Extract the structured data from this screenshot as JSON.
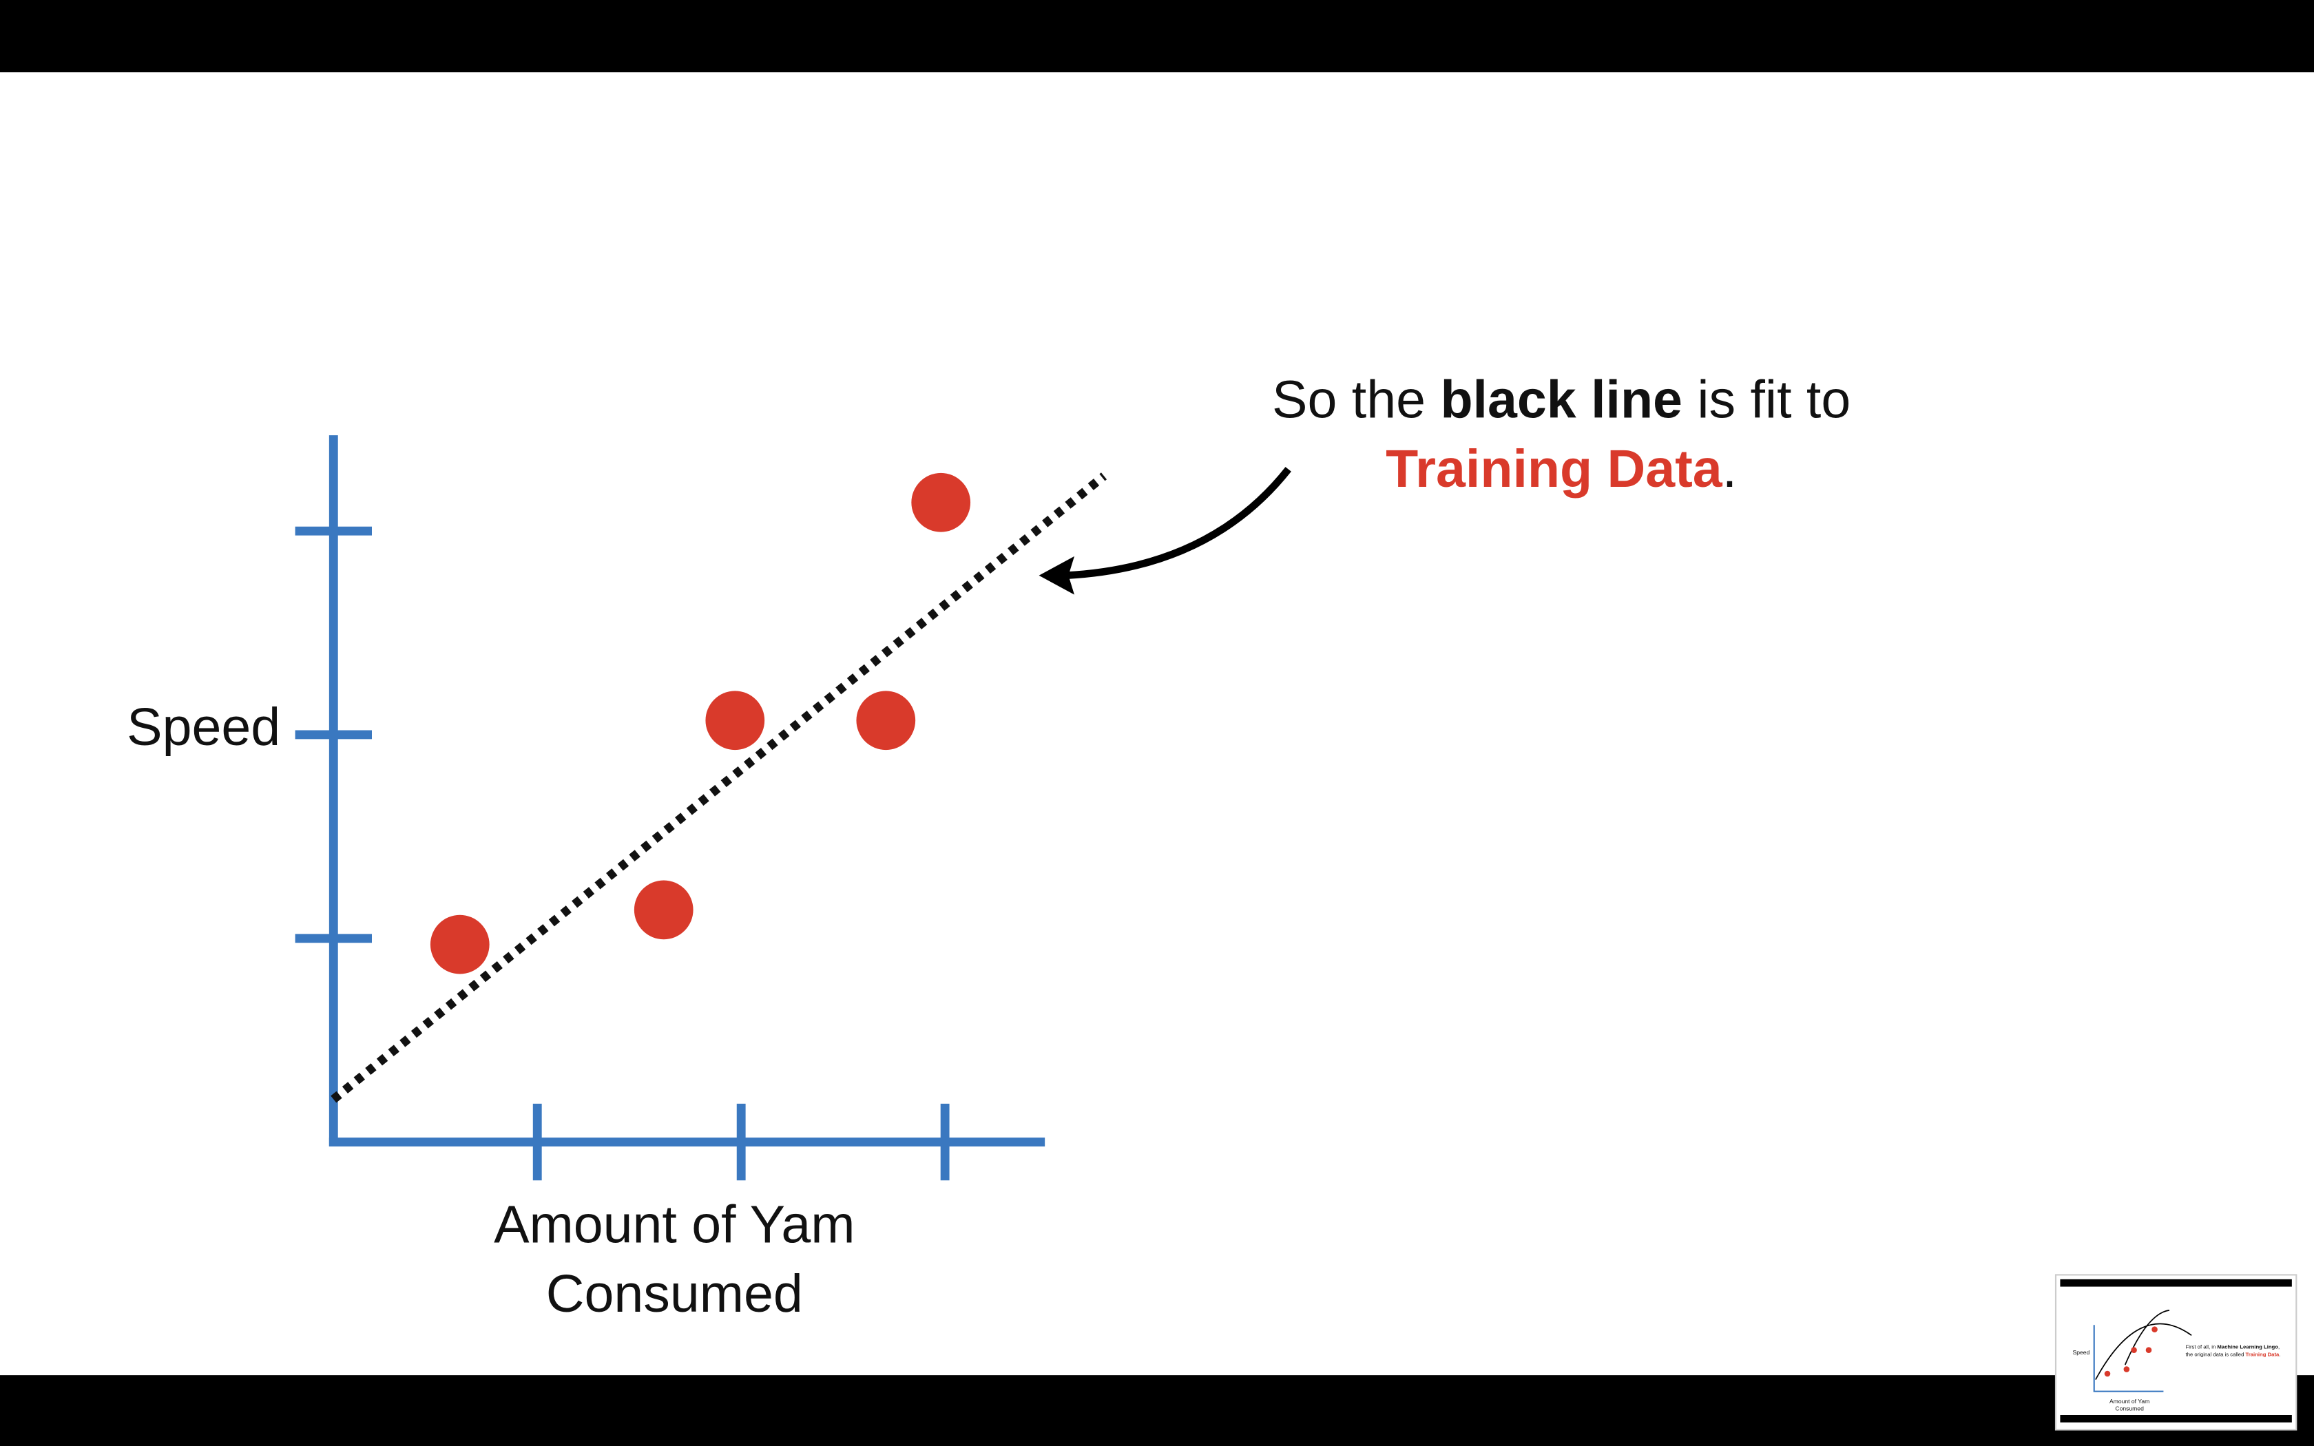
{
  "chart_data": {
    "type": "scatter",
    "ylabel": "Speed",
    "xlabel": [
      "Amount of Yam",
      "Consumed"
    ],
    "x": [
      0.62,
      1.62,
      1.97,
      2.71,
      2.98
    ],
    "values": [
      0.97,
      1.14,
      2.07,
      2.07,
      3.14
    ],
    "color": "#d93a2b",
    "axis_color": "#3a78c0",
    "xlim": [
      0,
      3.49
    ],
    "ylim": [
      0,
      3.47
    ],
    "xticks": [
      1,
      2,
      3
    ],
    "yticks": [
      1,
      2,
      3
    ],
    "fit_line": {
      "x": [
        0,
        3.78
      ],
      "y": [
        0.21,
        3.27
      ],
      "color": "#111111"
    },
    "annotation": [
      "So the ",
      "black line",
      " is fit to",
      "Training Data",
      "."
    ]
  },
  "thumbnail": {
    "ylabel": "Speed",
    "xlabel": [
      "Amount of Yam",
      "Consumed"
    ],
    "caption": [
      "First of all, in ",
      "Machine Learning Lingo",
      ",",
      "the original data is called ",
      "Training Data",
      "."
    ]
  }
}
